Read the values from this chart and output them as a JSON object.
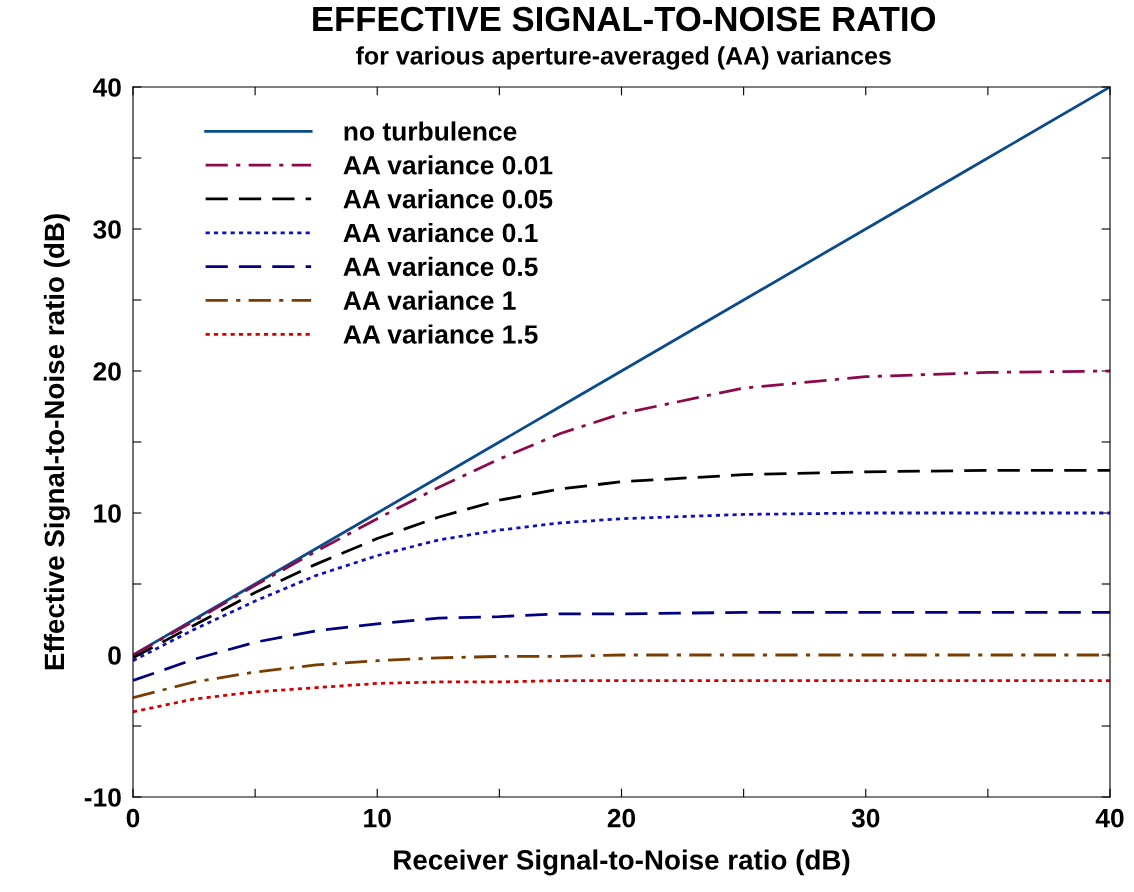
{
  "chart_data": {
    "type": "line",
    "title": "EFFECTIVE SIGNAL-TO-NOISE RATIO",
    "subtitle": "for various aperture-averaged (AA) variances",
    "xlabel": "Receiver Signal-to-Noise ratio (dB)",
    "ylabel": "Effective Signal-to-Noise ratio (dB)",
    "x": [
      0,
      2.5,
      5,
      7.5,
      10,
      12.5,
      15,
      17.5,
      20,
      25,
      30,
      35,
      40
    ],
    "series": [
      {
        "name": "no turbulence",
        "color": "#0b4a8b",
        "line_style": "solid",
        "values": [
          0,
          2.5,
          5,
          7.5,
          10,
          12.5,
          15,
          17.5,
          20,
          25,
          30,
          35,
          40
        ]
      },
      {
        "name": "AA variance 0.01",
        "color": "#8b0a4b",
        "line_style": "dashdot",
        "values": [
          0.0,
          2.4,
          4.9,
          7.3,
          9.6,
          11.8,
          13.8,
          15.6,
          17.0,
          18.8,
          19.6,
          19.9,
          20.0
        ]
      },
      {
        "name": "AA variance 0.05",
        "color": "#000000",
        "line_style": "dashed",
        "values": [
          -0.2,
          2.1,
          4.4,
          6.4,
          8.2,
          9.7,
          10.9,
          11.7,
          12.2,
          12.7,
          12.9,
          13.0,
          13.0
        ]
      },
      {
        "name": "AA variance 0.1",
        "color": "#1010b8",
        "line_style": "dotted",
        "values": [
          -0.4,
          1.8,
          3.8,
          5.6,
          7.0,
          8.1,
          8.8,
          9.3,
          9.6,
          9.9,
          10.0,
          10.0,
          10.0
        ]
      },
      {
        "name": "AA variance 0.5",
        "color": "#000080",
        "line_style": "dashed",
        "values": [
          -1.8,
          -0.3,
          0.9,
          1.7,
          2.2,
          2.6,
          2.7,
          2.9,
          2.9,
          3.0,
          3.0,
          3.0,
          3.0
        ]
      },
      {
        "name": "AA variance 1",
        "color": "#7a3d00",
        "line_style": "dashdot",
        "values": [
          -3.0,
          -1.9,
          -1.2,
          -0.7,
          -0.4,
          -0.2,
          -0.1,
          -0.1,
          0.0,
          0.0,
          0.0,
          0.0,
          0.0
        ]
      },
      {
        "name": "AA variance 1.5",
        "color": "#d00000",
        "line_style": "dotted",
        "values": [
          -4.0,
          -3.1,
          -2.6,
          -2.3,
          -2.0,
          -1.9,
          -1.9,
          -1.8,
          -1.8,
          -1.8,
          -1.8,
          -1.8,
          -1.8
        ]
      }
    ],
    "xlim": [
      0,
      40
    ],
    "ylim": [
      -10,
      40
    ],
    "xticks": [
      0,
      {
        "value": 5,
        "label": null
      },
      10,
      {
        "value": 15,
        "label": null
      },
      20,
      {
        "value": 25,
        "label": null
      },
      30,
      {
        "value": 35,
        "label": null
      },
      40
    ],
    "yticks": [
      -10,
      {
        "value": -5,
        "label": null
      },
      0,
      {
        "value": 5,
        "label": null
      },
      10,
      {
        "value": 15,
        "label": null
      },
      20,
      {
        "value": 25,
        "label": null
      },
      30,
      {
        "value": 35,
        "label": null
      },
      40
    ],
    "grid": false,
    "legend": "top left",
    "marker": "none"
  }
}
